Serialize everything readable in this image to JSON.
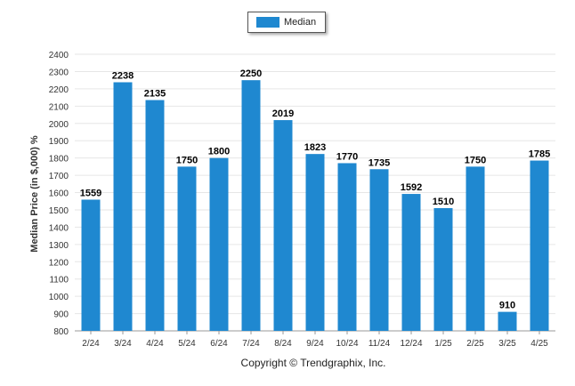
{
  "chart_data": {
    "type": "bar",
    "categories": [
      "2/24",
      "3/24",
      "4/24",
      "5/24",
      "6/24",
      "7/24",
      "8/24",
      "9/24",
      "10/24",
      "11/24",
      "12/24",
      "1/25",
      "2/25",
      "3/25",
      "4/25"
    ],
    "series": [
      {
        "name": "Median",
        "values": [
          1559,
          2238,
          2135,
          1750,
          1800,
          2250,
          2019,
          1823,
          1770,
          1735,
          1592,
          1510,
          1750,
          910,
          1785
        ]
      }
    ],
    "title": "",
    "xlabel": "",
    "ylabel": "Median Price (in $,000) %",
    "ylim": [
      800,
      2400
    ],
    "yticks": [
      800,
      900,
      1000,
      1100,
      1200,
      1300,
      1400,
      1500,
      1600,
      1700,
      1800,
      1900,
      2000,
      2100,
      2200,
      2300,
      2400
    ],
    "grid": true,
    "legend": "top-center",
    "data_labels": true
  },
  "colors": {
    "bar": "#1f88d0",
    "grid": "#e6e6e6"
  },
  "footer": {
    "copyright": "Copyright © Trendgraphix, Inc."
  }
}
